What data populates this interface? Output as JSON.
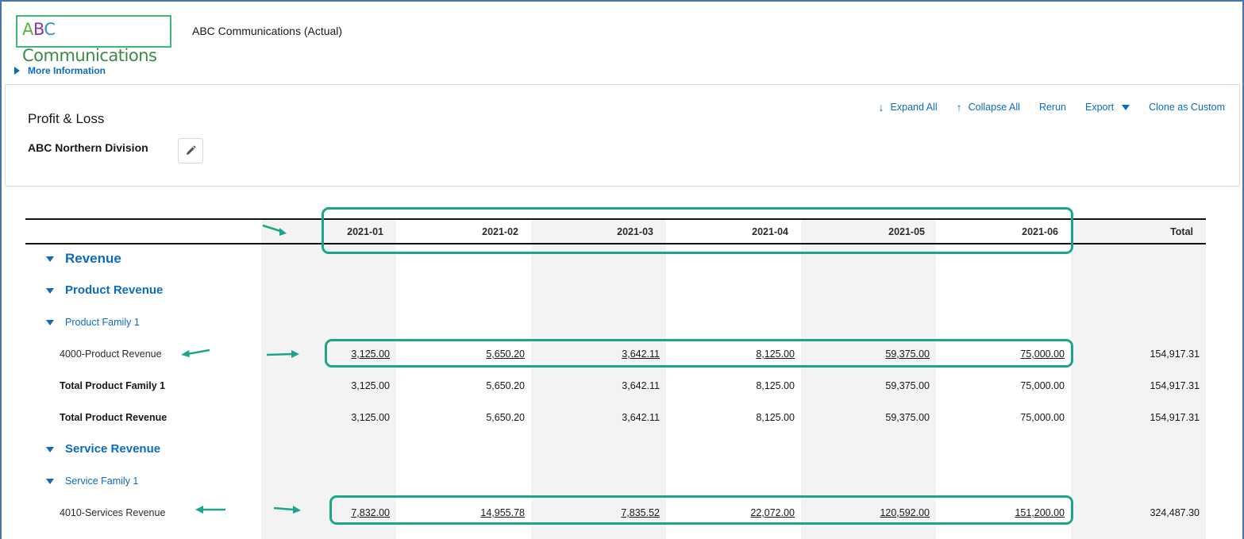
{
  "header": {
    "logo_text": [
      "A",
      "B",
      "C",
      " Communications"
    ],
    "company_title": "ABC Communications (Actual)",
    "more_info": "More Information"
  },
  "report": {
    "title": "Profit & Loss",
    "subtitle": "ABC Northern Division",
    "actions": {
      "expand_all": "Expand All",
      "collapse_all": "Collapse All",
      "rerun": "Rerun",
      "export": "Export",
      "clone": "Clone as Custom"
    }
  },
  "table": {
    "columns": [
      "2021-01",
      "2021-02",
      "2021-03",
      "2021-04",
      "2021-05",
      "2021-06",
      "Total"
    ],
    "rows": [
      {
        "label": "Revenue",
        "level": 1
      },
      {
        "label": "Product Revenue",
        "level": 2
      },
      {
        "label": "Product Family 1",
        "level": 3
      },
      {
        "label": "4000-Product Revenue",
        "type": "account",
        "values": [
          "3,125.00",
          "5,650.20",
          "3,642.11",
          "8,125.00",
          "59,375.00",
          "75,000.00"
        ],
        "total": "154,917.31"
      },
      {
        "label": "Total Product Family 1",
        "type": "total",
        "values": [
          "3,125.00",
          "5,650.20",
          "3,642.11",
          "8,125.00",
          "59,375.00",
          "75,000.00"
        ],
        "total": "154,917.31"
      },
      {
        "label": "Total Product Revenue",
        "type": "total",
        "values": [
          "3,125.00",
          "5,650.20",
          "3,642.11",
          "8,125.00",
          "59,375.00",
          "75,000.00"
        ],
        "total": "154,917.31"
      },
      {
        "label": "Service Revenue",
        "level": 2
      },
      {
        "label": "Service Family 1",
        "level": 3
      },
      {
        "label": "4010-Services Revenue",
        "type": "account",
        "values": [
          "7,832.00",
          "14,955.78",
          "7,835.52",
          "22,072.00",
          "120,592.00",
          "151,200.00"
        ],
        "total": "324,487.30"
      }
    ]
  },
  "colors": {
    "accent": "#0b6bbf",
    "highlight": "#1ba68a",
    "shade": "#f3f3f3"
  }
}
